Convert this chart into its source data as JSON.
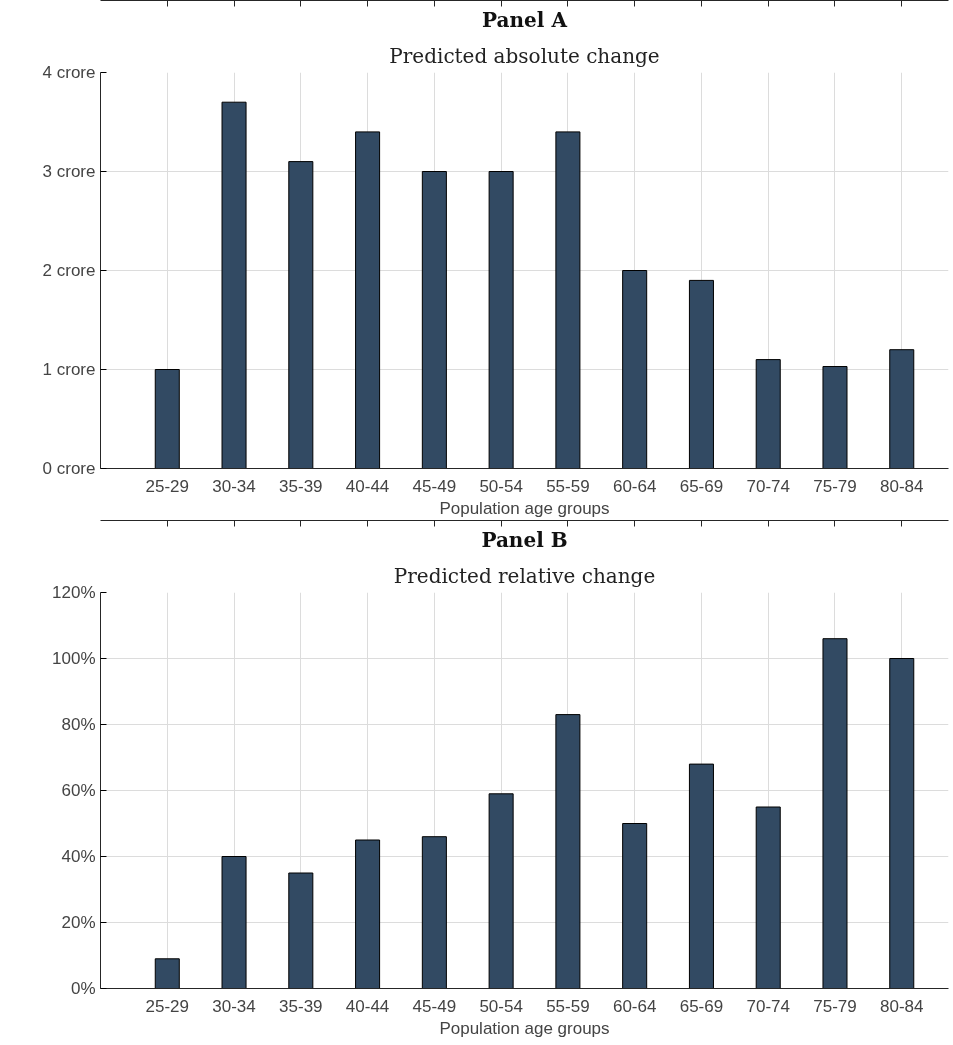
{
  "chart_data": [
    {
      "type": "bar",
      "title": "Panel A",
      "subtitle": "Predicted absolute change",
      "xlabel": "Population age groups",
      "categories": [
        "25-29",
        "30-34",
        "35-39",
        "40-44",
        "45-49",
        "50-54",
        "55-59",
        "60-64",
        "65-69",
        "70-74",
        "75-79",
        "80-84"
      ],
      "values": [
        1.0,
        3.7,
        3.1,
        3.4,
        3.0,
        3.0,
        3.4,
        2.0,
        1.9,
        1.1,
        1.03,
        1.2
      ],
      "color": "#324a63",
      "ylim": [
        0,
        4
      ],
      "yticks": [
        {
          "value": 0,
          "label": "0 crore"
        },
        {
          "value": 1,
          "label": "1 crore"
        },
        {
          "value": 2,
          "label": "2 crore"
        },
        {
          "value": 3,
          "label": "3 crore"
        },
        {
          "value": 4,
          "label": "4 crore"
        }
      ],
      "grid": true
    },
    {
      "type": "bar",
      "title": "Panel B",
      "subtitle": "Predicted relative change",
      "xlabel": "Population age groups",
      "categories": [
        "25-29",
        "30-34",
        "35-39",
        "40-44",
        "45-49",
        "50-54",
        "55-59",
        "60-64",
        "65-69",
        "70-74",
        "75-79",
        "80-84"
      ],
      "values": [
        9,
        40,
        35,
        45,
        46,
        59,
        83,
        50,
        68,
        55,
        106,
        100
      ],
      "color": "#324a63",
      "ylim": [
        0,
        120
      ],
      "yticks": [
        {
          "value": 0,
          "label": "0%"
        },
        {
          "value": 20,
          "label": "20%"
        },
        {
          "value": 40,
          "label": "40%"
        },
        {
          "value": 60,
          "label": "60%"
        },
        {
          "value": 80,
          "label": "80%"
        },
        {
          "value": 100,
          "label": "100%"
        },
        {
          "value": 120,
          "label": "120%"
        }
      ],
      "grid": true
    }
  ]
}
